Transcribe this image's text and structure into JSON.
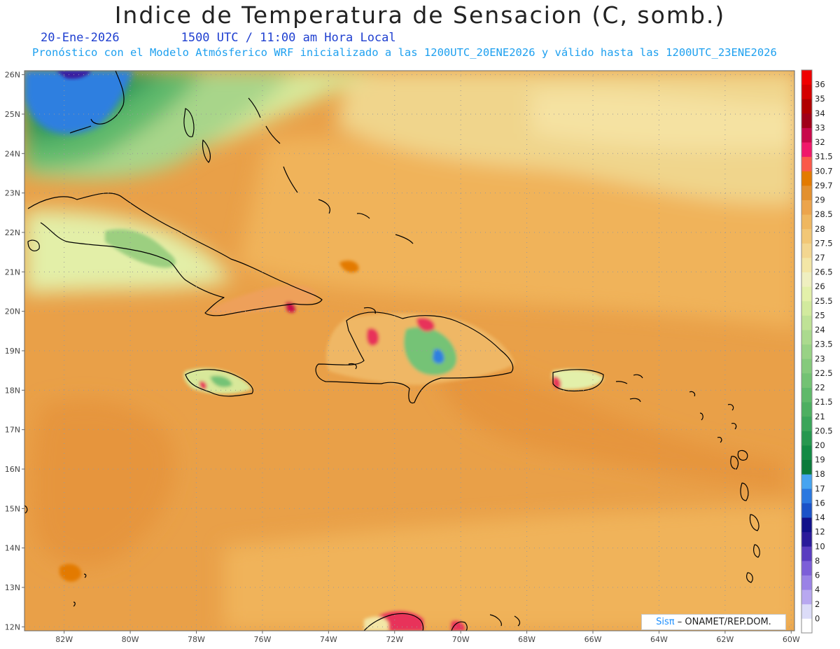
{
  "header": {
    "title": "Indice de Temperatura de Sensacion (C, somb.)",
    "date": "20-Ene-2026",
    "valid_time": "1500 UTC / 11:00 am Hora Local",
    "model_info": "Pronóstico con el Modelo Atmósferico WRF inicializado a las 1200UTC_20ENE2026 y válido hasta las  1200UTC_23ENE2026"
  },
  "map": {
    "lon_range": [
      -83.2,
      -59.9
    ],
    "lat_range": [
      11.9,
      26.1
    ],
    "lat_ticks": [
      "12N",
      "13N",
      "14N",
      "15N",
      "16N",
      "17N",
      "18N",
      "19N",
      "20N",
      "21N",
      "22N",
      "23N",
      "24N",
      "25N",
      "26N"
    ],
    "lon_ticks": [
      "82W",
      "80W",
      "78W",
      "76W",
      "74W",
      "72W",
      "70W",
      "68W",
      "66W",
      "64W",
      "62W",
      "60W"
    ],
    "gridlines": "dotted",
    "colors": {
      "sea_warm": "#e9a048",
      "sea_mid": "#f0b35a",
      "north_pale": "#f0d58c",
      "cold_green": "#5fb96c",
      "cold_blue": "#2f7fe0",
      "hot_red": "#e8305a",
      "coast": "#000000"
    }
  },
  "colorbar": {
    "labels": [
      "0",
      "2",
      "4",
      "6",
      "8",
      "10",
      "12",
      "14",
      "16",
      "17",
      "18",
      "19",
      "20",
      "20.5",
      "21",
      "21.5",
      "22",
      "22.5",
      "23",
      "23.5",
      "24",
      "25",
      "25.5",
      "26",
      "26.5",
      "27",
      "27.5",
      "28",
      "28.5",
      "29",
      "29.7",
      "30.7",
      "31.5",
      "32",
      "33",
      "34",
      "35",
      "36"
    ],
    "colors": [
      "#ffffff",
      "#dcdcf8",
      "#b8a8f0",
      "#9a82e6",
      "#7c5ed8",
      "#5a3cc0",
      "#2a1a9a",
      "#10108a",
      "#1a52c8",
      "#2a78e0",
      "#46a4f0",
      "#0a7a3a",
      "#128a44",
      "#26974f",
      "#3aa55a",
      "#4daf61",
      "#5fb96a",
      "#73c273",
      "#85ca7c",
      "#98d285",
      "#abda8e",
      "#bfe296",
      "#d2ea9e",
      "#e3f0aa",
      "#efefc0",
      "#f3e6a6",
      "#f3d690",
      "#f2c776",
      "#efb760",
      "#eca44c",
      "#e3902e",
      "#e37a00",
      "#fa5a4a",
      "#f0186a",
      "#c8084a",
      "#a00018",
      "#b00000",
      "#d40000",
      "#f00000"
    ]
  },
  "credit": {
    "sis": "Sisπ",
    "org": "– ONAMET/REP.DOM."
  }
}
